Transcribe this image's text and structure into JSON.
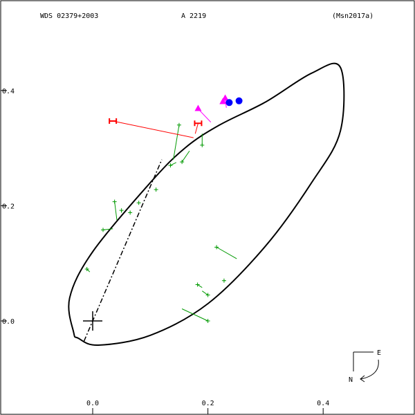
{
  "header": {
    "wds": "WDS 02379+2003",
    "designation": "A  2219",
    "reference": "(Msn2017a)"
  },
  "compass": {
    "east_label": "E",
    "north_label": "N"
  },
  "chart_data": {
    "type": "scatter",
    "title": "",
    "xlabel": "",
    "ylabel": "",
    "xlim": [
      -0.16,
      0.56
    ],
    "ylim": [
      -0.15,
      0.57
    ],
    "x_ticks": [
      0.0,
      0.2,
      0.4
    ],
    "x_tick_labels": [
      "0.0",
      "0.2",
      "0.4"
    ],
    "y_ticks": [
      0.0,
      0.2,
      0.4
    ],
    "y_tick_labels": [
      "0.0",
      "0.2",
      "0.4"
    ],
    "grid": false,
    "colors": {
      "orbit": "#000000",
      "micrometric": "#009900",
      "speckle": "#ff00ff",
      "hipparcos": "#ff0000",
      "predicted": "#0000ff"
    },
    "orbit_ellipse": {
      "points": [
        [
          -0.025,
          -0.03
        ],
        [
          0.01,
          -0.042
        ],
        [
          0.1,
          -0.025
        ],
        [
          0.2,
          0.03
        ],
        [
          0.3,
          0.13
        ],
        [
          0.38,
          0.24
        ],
        [
          0.43,
          0.33
        ],
        [
          0.43,
          0.44
        ],
        [
          0.38,
          0.43
        ],
        [
          0.3,
          0.38
        ],
        [
          0.22,
          0.34
        ],
        [
          0.16,
          0.3
        ],
        [
          0.1,
          0.24
        ],
        [
          0.0,
          0.12
        ],
        [
          -0.04,
          0.04
        ],
        [
          -0.033,
          -0.02
        ]
      ]
    },
    "line_of_nodes": [
      [
        -0.015,
        -0.035
      ],
      [
        0.12,
        0.28
      ]
    ],
    "primary": [
      0.0,
      0.0
    ],
    "series": [
      {
        "marker": "plus",
        "points": [
          [
            -0.01,
            0.09
          ],
          [
            0.018,
            0.158
          ],
          [
            0.038,
            0.207
          ],
          [
            0.05,
            0.192
          ],
          [
            0.065,
            0.188
          ],
          [
            0.08,
            0.205
          ],
          [
            0.11,
            0.228
          ],
          [
            0.135,
            0.27
          ],
          [
            0.15,
            0.34
          ],
          [
            0.155,
            0.276
          ],
          [
            0.19,
            0.305
          ],
          [
            0.215,
            0.128
          ],
          [
            0.228,
            0.07
          ],
          [
            0.182,
            0.063
          ],
          [
            0.2,
            0.045
          ],
          [
            0.2,
            0.0
          ]
        ],
        "residual_ends": [
          [
            -0.005,
            0.085
          ],
          [
            0.035,
            0.16
          ],
          [
            0.042,
            0.175
          ],
          [
            0.05,
            0.188
          ],
          [
            0.065,
            0.19
          ],
          [
            0.08,
            0.205
          ],
          [
            0.11,
            0.228
          ],
          [
            0.145,
            0.275
          ],
          [
            0.14,
            0.28
          ],
          [
            0.168,
            0.295
          ],
          [
            0.19,
            0.325
          ],
          [
            0.25,
            0.108
          ],
          [
            0.23,
            0.07
          ],
          [
            0.19,
            0.058
          ],
          [
            0.19,
            0.052
          ],
          [
            0.155,
            0.021
          ]
        ]
      },
      {
        "marker": "triangle",
        "points": [
          [
            0.183,
            0.368
          ],
          [
            0.23,
            0.386
          ],
          [
            0.226,
            0.38
          ]
        ],
        "residual_ends": [
          [
            0.205,
            0.345
          ],
          [
            0.232,
            0.37
          ],
          [
            0.226,
            0.378
          ]
        ]
      },
      {
        "marker": "hbar",
        "points": [
          [
            0.035,
            0.347
          ],
          [
            0.183,
            0.343
          ]
        ],
        "residual_ends": [
          [
            0.175,
            0.318
          ],
          [
            0.178,
            0.325
          ]
        ]
      },
      {
        "marker": "dot",
        "points": [
          [
            0.237,
            0.379
          ],
          [
            0.254,
            0.382
          ]
        ]
      }
    ]
  }
}
